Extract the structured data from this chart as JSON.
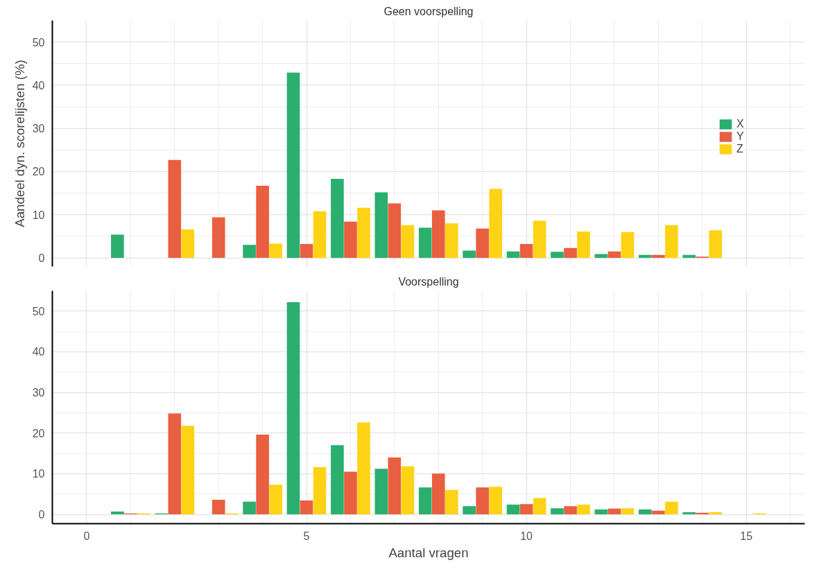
{
  "chart_data": [
    {
      "type": "bar",
      "title": "Geen voorspelling",
      "ylabel": "Aandeel dyn. scorelijsten (%)",
      "x": [
        1,
        2,
        3,
        4,
        5,
        6,
        7,
        8,
        9,
        10,
        11,
        12,
        13,
        14
      ],
      "series": [
        {
          "name": "X",
          "color": "#2aaf6f",
          "values": [
            5.4,
            null,
            null,
            3.0,
            42.9,
            18.3,
            15.2,
            7.0,
            1.7,
            1.5,
            1.4,
            0.9,
            0.7,
            0.7
          ]
        },
        {
          "name": "Y",
          "color": "#e95f41",
          "values": [
            null,
            22.7,
            9.4,
            16.7,
            3.2,
            8.4,
            12.6,
            11.0,
            6.8,
            3.2,
            2.3,
            1.5,
            0.7,
            0.3
          ]
        },
        {
          "name": "Z",
          "color": "#fed316",
          "values": [
            null,
            6.6,
            null,
            3.3,
            10.8,
            11.6,
            7.6,
            8.0,
            16.0,
            8.6,
            6.1,
            6.0,
            7.6,
            6.4
          ]
        }
      ],
      "xlim": [
        -0.78,
        16.33
      ],
      "xticks": [
        0,
        5,
        10,
        15
      ],
      "ylim": [
        -2,
        55
      ],
      "yticks": [
        0,
        10,
        20,
        30,
        40,
        50
      ],
      "grid": true,
      "legend": "right",
      "tick_labels": "y"
    },
    {
      "type": "bar",
      "title": "Voorspelling",
      "xlabel": "Aantal vragen",
      "x": [
        1,
        2,
        3,
        4,
        5,
        6,
        7,
        8,
        9,
        10,
        11,
        12,
        13,
        14,
        15
      ],
      "series": [
        {
          "color": "#2aaf6f",
          "values": [
            0.7,
            0.2,
            null,
            3.1,
            52.2,
            17.0,
            11.2,
            6.6,
            2.0,
            2.4,
            1.5,
            1.2,
            1.2,
            0.5,
            null
          ]
        },
        {
          "color": "#e95f41",
          "values": [
            0.2,
            24.8,
            3.6,
            19.6,
            3.4,
            10.5,
            14.0,
            10.0,
            6.6,
            2.5,
            2.0,
            1.4,
            0.9,
            0.4,
            null
          ]
        },
        {
          "color": "#fed316",
          "values": [
            0.2,
            21.8,
            0.2,
            7.3,
            11.6,
            22.6,
            11.8,
            6.0,
            6.8,
            4.0,
            2.4,
            1.5,
            3.1,
            0.5,
            0.2
          ]
        }
      ],
      "xlim": [
        -0.78,
        16.33
      ],
      "xticks": [
        0,
        5,
        10,
        15
      ],
      "ylim": [
        -2.3,
        55
      ],
      "yticks": [
        0,
        10,
        20,
        30,
        40,
        50
      ],
      "grid": true
    }
  ]
}
